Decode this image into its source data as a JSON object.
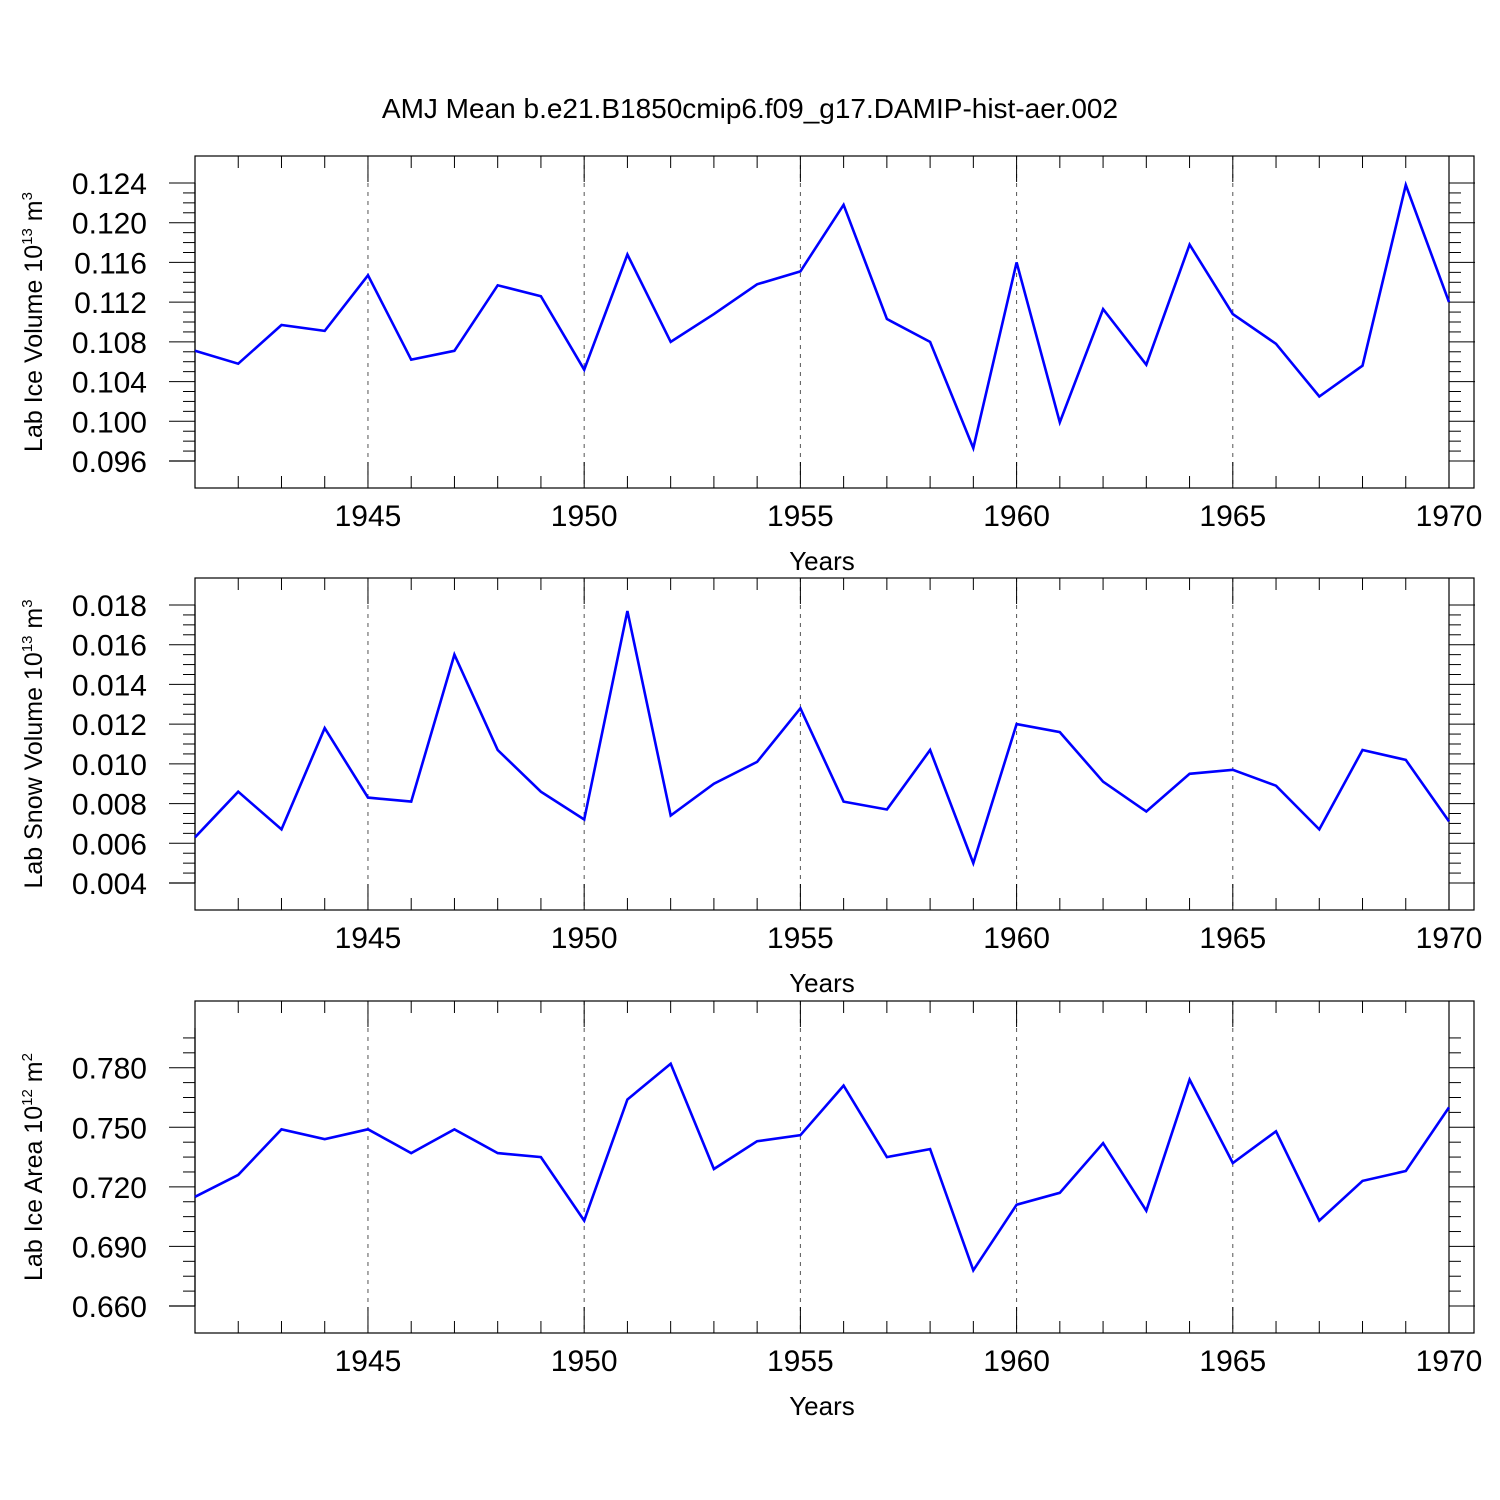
{
  "title": "AMJ Mean b.e21.B1850cmip6.f09_g17.DAMIP-hist-aer.002",
  "colors": {
    "line": "#0000ff",
    "axis": "#000000",
    "grid": "#555555"
  },
  "chart_data": [
    {
      "type": "line",
      "ylabel": {
        "text": "Lab Ice Volume 10",
        "exp": "13",
        "unit": " m",
        "unit_exp": "3"
      },
      "xlabel": "Years",
      "xlim": [
        1941,
        1970
      ],
      "ylim": [
        0.096,
        0.124
      ],
      "xticks": [
        1945,
        1950,
        1955,
        1960,
        1965,
        1970
      ],
      "yticks": [
        "0.096",
        "0.100",
        "0.104",
        "0.108",
        "0.112",
        "0.116",
        "0.120",
        "0.124"
      ],
      "grid": "x-dashed",
      "x": [
        1941,
        1942,
        1943,
        1944,
        1945,
        1946,
        1947,
        1948,
        1949,
        1950,
        1951,
        1952,
        1953,
        1954,
        1955,
        1956,
        1957,
        1958,
        1959,
        1960,
        1961,
        1962,
        1963,
        1964,
        1965,
        1966,
        1967,
        1968,
        1969,
        1970
      ],
      "values": [
        0.1071,
        0.1058,
        0.1097,
        0.1091,
        0.1147,
        0.1062,
        0.1071,
        0.1137,
        0.1126,
        0.1052,
        0.1168,
        0.108,
        0.1108,
        0.1138,
        0.1151,
        0.1218,
        0.1103,
        0.108,
        0.0973,
        0.116,
        0.0999,
        0.1113,
        0.1057,
        0.1178,
        0.1108,
        0.1078,
        0.1025,
        0.1056,
        0.1238,
        0.112
      ]
    },
    {
      "type": "line",
      "ylabel": {
        "text": "Lab Snow Volume 10",
        "exp": "13",
        "unit": " m",
        "unit_exp": "3"
      },
      "xlabel": "Years",
      "xlim": [
        1941,
        1970
      ],
      "ylim": [
        0.004,
        0.018
      ],
      "xticks": [
        1945,
        1950,
        1955,
        1960,
        1965,
        1970
      ],
      "yticks": [
        "0.004",
        "0.006",
        "0.008",
        "0.010",
        "0.012",
        "0.014",
        "0.016",
        "0.018"
      ],
      "grid": "x-dashed",
      "x": [
        1941,
        1942,
        1943,
        1944,
        1945,
        1946,
        1947,
        1948,
        1949,
        1950,
        1951,
        1952,
        1953,
        1954,
        1955,
        1956,
        1957,
        1958,
        1959,
        1960,
        1961,
        1962,
        1963,
        1964,
        1965,
        1966,
        1967,
        1968,
        1969,
        1970
      ],
      "values": [
        0.0063,
        0.0086,
        0.0067,
        0.0118,
        0.0083,
        0.0081,
        0.0155,
        0.0107,
        0.0086,
        0.0072,
        0.0177,
        0.0074,
        0.009,
        0.0101,
        0.0128,
        0.0081,
        0.0077,
        0.0107,
        0.005,
        0.012,
        0.0116,
        0.0091,
        0.0076,
        0.0095,
        0.0097,
        0.0089,
        0.0067,
        0.0107,
        0.0102,
        0.0071
      ]
    },
    {
      "type": "line",
      "ylabel": {
        "text": "Lab Ice Area 10",
        "exp": "12",
        "unit": " m",
        "unit_exp": "2"
      },
      "xlabel": "Years",
      "xlim": [
        1941,
        1970
      ],
      "ylim": [
        0.66,
        0.8
      ],
      "xticks": [
        1945,
        1950,
        1955,
        1960,
        1965,
        1970
      ],
      "yticks": [
        "0.660",
        "0.690",
        "0.720",
        "0.750",
        "0.780"
      ],
      "grid": "x-dashed",
      "x": [
        1941,
        1942,
        1943,
        1944,
        1945,
        1946,
        1947,
        1948,
        1949,
        1950,
        1951,
        1952,
        1953,
        1954,
        1955,
        1956,
        1957,
        1958,
        1959,
        1960,
        1961,
        1962,
        1963,
        1964,
        1965,
        1966,
        1967,
        1968,
        1969,
        1970
      ],
      "values": [
        0.715,
        0.726,
        0.749,
        0.744,
        0.749,
        0.737,
        0.749,
        0.737,
        0.735,
        0.703,
        0.764,
        0.782,
        0.729,
        0.743,
        0.746,
        0.771,
        0.735,
        0.739,
        0.678,
        0.711,
        0.717,
        0.742,
        0.708,
        0.774,
        0.732,
        0.748,
        0.703,
        0.723,
        0.728,
        0.76
      ]
    }
  ]
}
